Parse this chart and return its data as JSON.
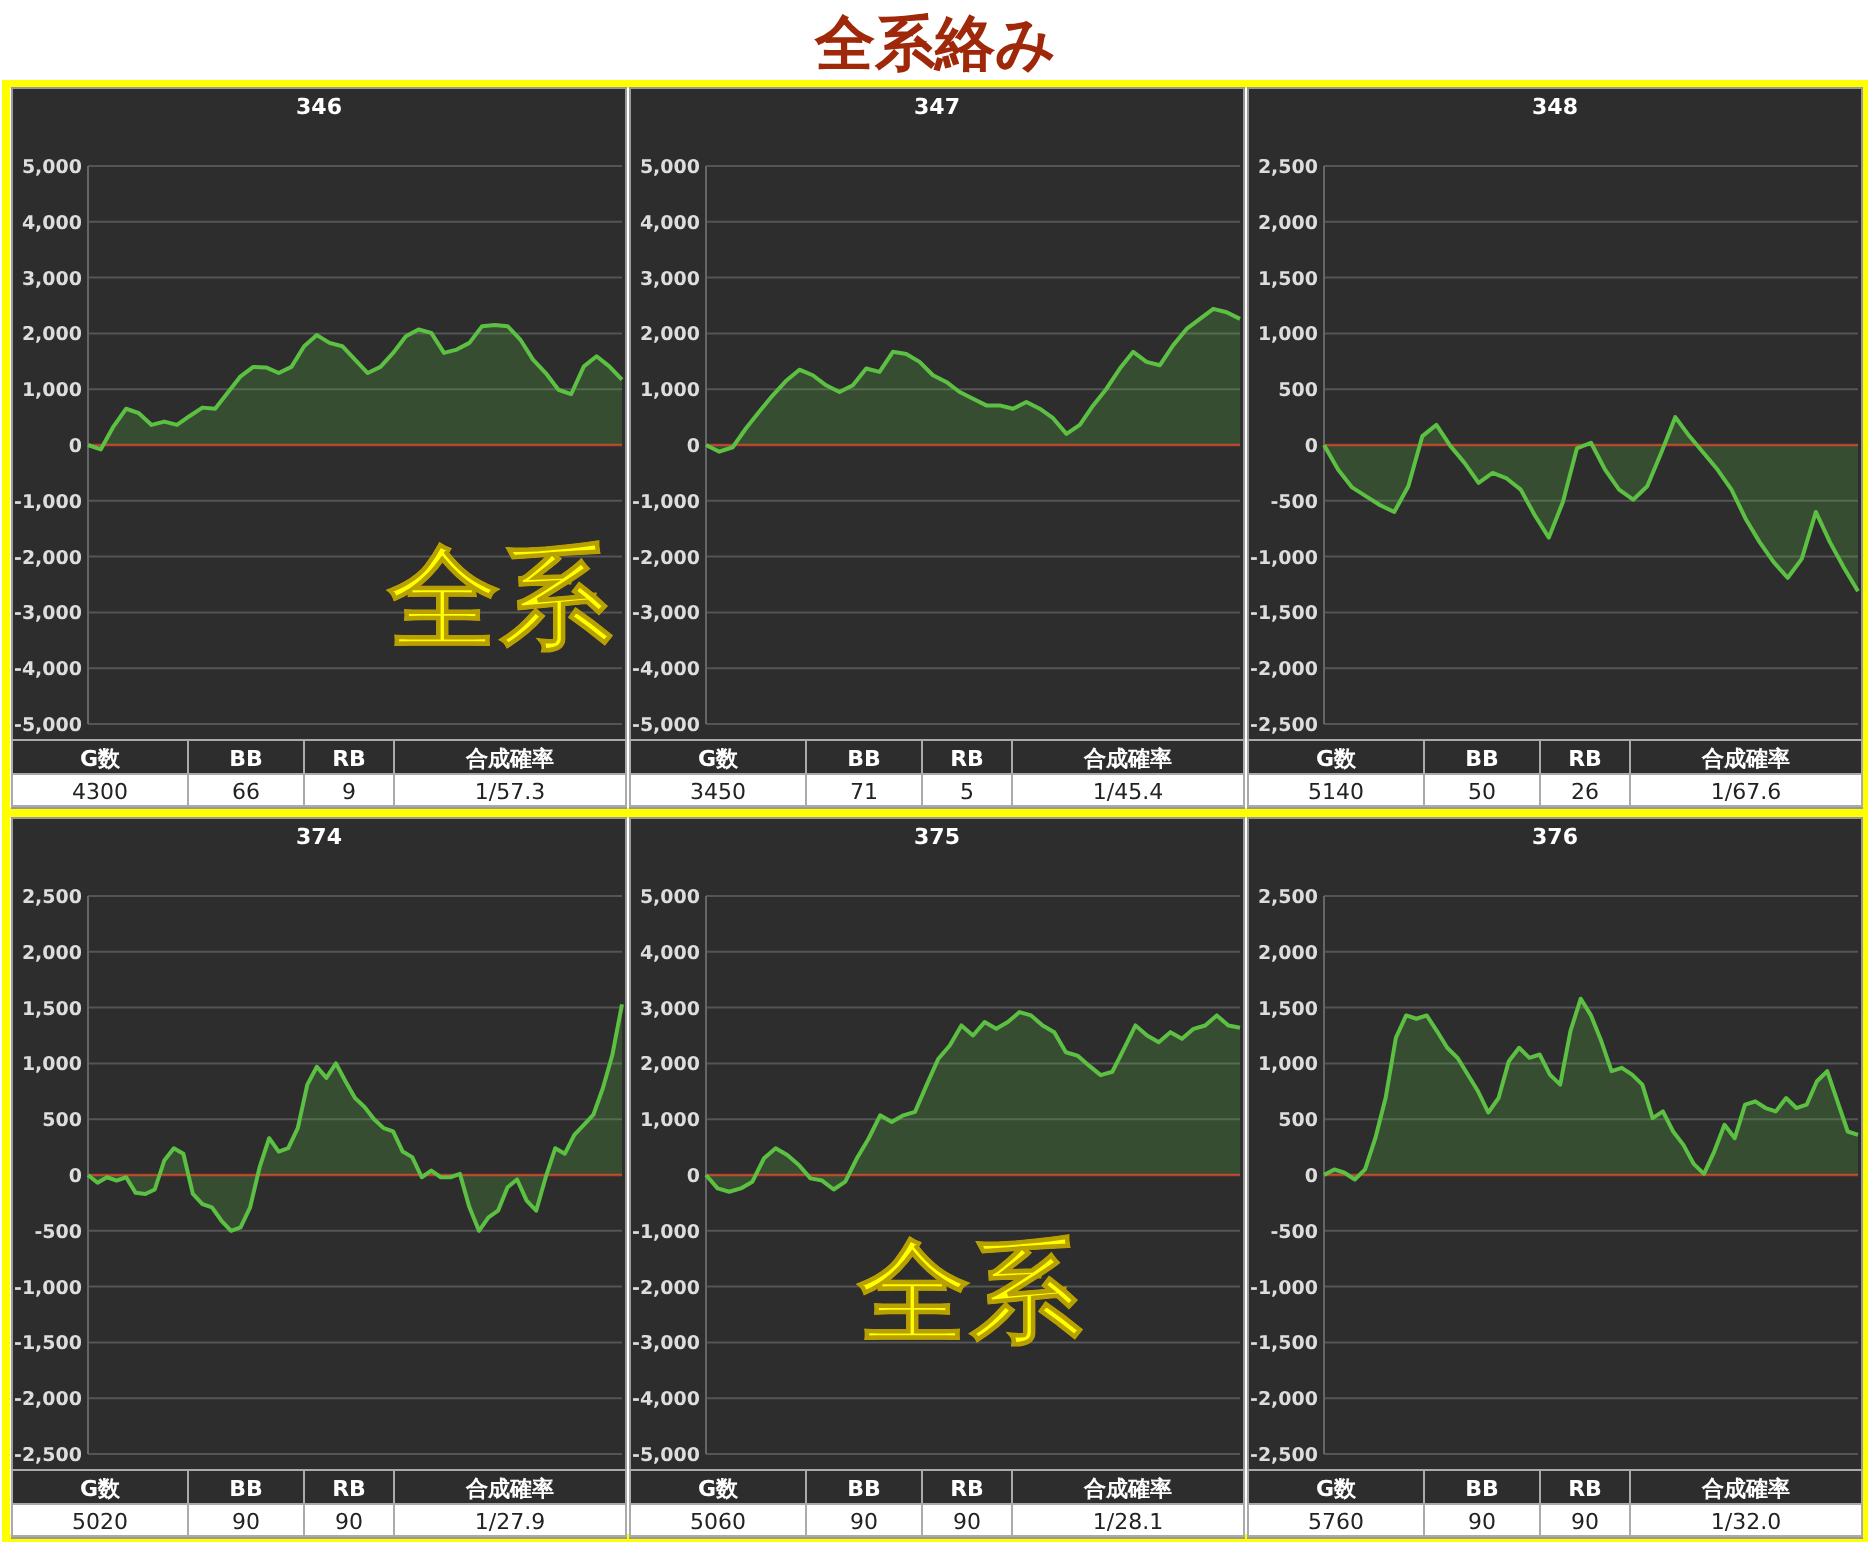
{
  "chart_data": [
    {
      "type": "other",
      "title": "全系絡み",
      "annotations": [
        "全系",
        "全系"
      ]
    },
    {
      "type": "area",
      "title": "346",
      "color": "#5cc043",
      "grid": "y",
      "tick_labels": "y",
      "ylim": [
        -5000,
        5000
      ],
      "yticks": [
        {
          "value": 5000,
          "label": "5,000"
        },
        {
          "value": 4000,
          "label": "4,000"
        },
        {
          "value": 3000,
          "label": "3,000"
        },
        {
          "value": 2000,
          "label": "2,000"
        },
        {
          "value": 1000,
          "label": "1,000"
        },
        0,
        {
          "value": -1000,
          "label": "-1,000"
        },
        {
          "value": -2000,
          "label": "-2,000"
        },
        {
          "value": -3000,
          "label": "-3,000"
        },
        {
          "value": -4000,
          "label": "-4,000"
        },
        {
          "value": -5000,
          "label": "-5,000"
        }
      ],
      "ref_lines": [
        {
          "axis": "y",
          "value": 0,
          "color": "#c0392b"
        }
      ],
      "annotations": [
        "G数",
        "BB",
        "RB",
        "合成確率",
        "4300",
        "66",
        "9",
        "1/57.3"
      ],
      "categories": [
        null,
        null,
        null,
        null,
        null,
        null,
        null,
        null,
        null,
        null,
        null,
        null,
        null,
        null,
        null,
        null,
        null,
        null,
        null,
        null,
        null,
        null,
        null,
        null,
        null,
        null,
        null,
        null,
        null,
        null,
        null,
        null,
        null,
        null,
        null,
        null,
        null,
        null,
        null,
        null,
        null,
        null,
        null
      ],
      "values": [
        0,
        -80,
        330,
        650,
        570,
        360,
        420,
        360,
        520,
        670,
        650,
        940,
        1230,
        1400,
        1390,
        1290,
        1400,
        1770,
        1970,
        1830,
        1770,
        1530,
        1290,
        1400,
        1650,
        1950,
        2070,
        2010,
        1650,
        1710,
        1830,
        2130,
        2150,
        2130,
        1890,
        1530,
        1290,
        990,
        910,
        1410,
        1590,
        1410,
        1170
      ]
    },
    {
      "type": "area",
      "title": "347",
      "color": "#5cc043",
      "grid": "y",
      "tick_labels": "y",
      "ylim": [
        -5000,
        5000
      ],
      "yticks": [
        {
          "value": 5000,
          "label": "5,000"
        },
        {
          "value": 4000,
          "label": "4,000"
        },
        {
          "value": 3000,
          "label": "3,000"
        },
        {
          "value": 2000,
          "label": "2,000"
        },
        {
          "value": 1000,
          "label": "1,000"
        },
        0,
        {
          "value": -1000,
          "label": "-1,000"
        },
        {
          "value": -2000,
          "label": "-2,000"
        },
        {
          "value": -3000,
          "label": "-3,000"
        },
        {
          "value": -4000,
          "label": "-4,000"
        },
        {
          "value": -5000,
          "label": "-5,000"
        }
      ],
      "ref_lines": [
        {
          "axis": "y",
          "value": 0,
          "color": "#c0392b"
        }
      ],
      "annotations": [
        "G数",
        "BB",
        "RB",
        "合成確率",
        "3450",
        "71",
        "5",
        "1/45.4"
      ],
      "categories": [
        null,
        null,
        null,
        null,
        null,
        null,
        null,
        null,
        null,
        null,
        null,
        null,
        null,
        null,
        null,
        null,
        null,
        null,
        null,
        null,
        null,
        null,
        null,
        null,
        null,
        null,
        null,
        null,
        null,
        null,
        null,
        null,
        null,
        null,
        null,
        null,
        null,
        null,
        null,
        null,
        null
      ],
      "values": [
        0,
        -120,
        -40,
        300,
        600,
        890,
        1150,
        1350,
        1250,
        1070,
        950,
        1070,
        1370,
        1310,
        1670,
        1630,
        1490,
        1250,
        1130,
        950,
        830,
        710,
        710,
        650,
        770,
        650,
        480,
        200,
        360,
        710,
        1010,
        1370,
        1670,
        1490,
        1430,
        1790,
        2080,
        2260,
        2440,
        2380,
        2260
      ]
    },
    {
      "type": "area",
      "title": "348",
      "color": "#5cc043",
      "grid": "y",
      "tick_labels": "y",
      "ylim": [
        -2500,
        2500
      ],
      "yticks": [
        {
          "value": 2500,
          "label": "2,500"
        },
        {
          "value": 2000,
          "label": "2,000"
        },
        {
          "value": 1500,
          "label": "1,500"
        },
        {
          "value": 1000,
          "label": "1,000"
        },
        500,
        0,
        -500,
        {
          "value": -1000,
          "label": "-1,000"
        },
        {
          "value": -1500,
          "label": "-1,500"
        },
        {
          "value": -2000,
          "label": "-2,000"
        },
        {
          "value": -2500,
          "label": "-2,500"
        }
      ],
      "ref_lines": [
        {
          "axis": "y",
          "value": 0,
          "color": "#c0392b"
        }
      ],
      "annotations": [
        "G数",
        "BB",
        "RB",
        "合成確率",
        "5140",
        "50",
        "26",
        "1/67.6"
      ],
      "categories": [
        null,
        null,
        null,
        null,
        null,
        null,
        null,
        null,
        null,
        null,
        null,
        null,
        null,
        null,
        null,
        null,
        null,
        null,
        null,
        null,
        null,
        null,
        null,
        null,
        null,
        null,
        null,
        null,
        null,
        null,
        null,
        null,
        null,
        null,
        null,
        null,
        null,
        null,
        null
      ],
      "values": [
        0,
        -220,
        -380,
        -460,
        -540,
        -600,
        -370,
        80,
        180,
        -10,
        -160,
        -340,
        -250,
        -300,
        -400,
        -630,
        -830,
        -510,
        -30,
        20,
        -220,
        -400,
        -490,
        -370,
        -70,
        250,
        80,
        -70,
        -220,
        -400,
        -660,
        -870,
        -1050,
        -1190,
        -1020,
        -600,
        -870,
        -1100,
        -1310
      ]
    },
    {
      "type": "area",
      "title": "374",
      "color": "#5cc043",
      "grid": "y",
      "tick_labels": "y",
      "ylim": [
        -2500,
        2500
      ],
      "yticks": [
        {
          "value": 2500,
          "label": "2,500"
        },
        {
          "value": 2000,
          "label": "2,000"
        },
        {
          "value": 1500,
          "label": "1,500"
        },
        {
          "value": 1000,
          "label": "1,000"
        },
        500,
        0,
        -500,
        {
          "value": -1000,
          "label": "-1,000"
        },
        {
          "value": -1500,
          "label": "-1,500"
        },
        {
          "value": -2000,
          "label": "-2,000"
        },
        {
          "value": -2500,
          "label": "-2,500"
        }
      ],
      "ref_lines": [
        {
          "axis": "y",
          "value": 0,
          "color": "#c0392b"
        }
      ],
      "annotations": [
        "G数",
        "BB",
        "RB",
        "合成確率",
        "5020",
        "90",
        "90",
        "1/27.9"
      ],
      "categories": [
        null,
        null,
        null,
        null,
        null,
        null,
        null,
        null,
        null,
        null,
        null,
        null,
        null,
        null,
        null,
        null,
        null,
        null,
        null,
        null,
        null,
        null,
        null,
        null,
        null,
        null,
        null,
        null,
        null,
        null,
        null,
        null,
        null,
        null,
        null,
        null,
        null,
        null,
        null,
        null,
        null,
        null,
        null,
        null,
        null,
        null,
        null,
        null,
        null,
        null,
        null,
        null,
        null,
        null,
        null,
        null,
        null
      ],
      "values": [
        0,
        -70,
        -20,
        -50,
        -20,
        -160,
        -170,
        -130,
        130,
        240,
        190,
        -170,
        -260,
        -290,
        -410,
        -500,
        -470,
        -290,
        70,
        330,
        210,
        240,
        420,
        810,
        970,
        870,
        1000,
        840,
        690,
        610,
        500,
        420,
        390,
        210,
        160,
        -20,
        40,
        -20,
        -20,
        10,
        -290,
        -500,
        -380,
        -320,
        -110,
        -40,
        -230,
        -320,
        -20,
        240,
        190,
        360,
        450,
        540,
        780,
        1080,
        1530
      ]
    },
    {
      "type": "area",
      "title": "375",
      "color": "#5cc043",
      "grid": "y",
      "tick_labels": "y",
      "ylim": [
        -5000,
        5000
      ],
      "yticks": [
        {
          "value": 5000,
          "label": "5,000"
        },
        {
          "value": 4000,
          "label": "4,000"
        },
        {
          "value": 3000,
          "label": "3,000"
        },
        {
          "value": 2000,
          "label": "2,000"
        },
        {
          "value": 1000,
          "label": "1,000"
        },
        0,
        {
          "value": -1000,
          "label": "-1,000"
        },
        {
          "value": -2000,
          "label": "-2,000"
        },
        {
          "value": -3000,
          "label": "-3,000"
        },
        {
          "value": -4000,
          "label": "-4,000"
        },
        {
          "value": -5000,
          "label": "-5,000"
        }
      ],
      "ref_lines": [
        {
          "axis": "y",
          "value": 0,
          "color": "#c0392b"
        }
      ],
      "annotations": [
        "G数",
        "BB",
        "RB",
        "合成確率",
        "5060",
        "90",
        "90",
        "1/28.1"
      ],
      "categories": [
        null,
        null,
        null,
        null,
        null,
        null,
        null,
        null,
        null,
        null,
        null,
        null,
        null,
        null,
        null,
        null,
        null,
        null,
        null,
        null,
        null,
        null,
        null,
        null,
        null,
        null,
        null,
        null,
        null,
        null,
        null,
        null,
        null,
        null,
        null,
        null,
        null,
        null,
        null,
        null,
        null,
        null,
        null,
        null,
        null,
        null,
        null
      ],
      "values": [
        0,
        -240,
        -300,
        -240,
        -120,
        300,
        480,
        360,
        180,
        -60,
        -100,
        -260,
        -120,
        300,
        650,
        1070,
        950,
        1070,
        1130,
        1610,
        2080,
        2320,
        2680,
        2500,
        2740,
        2620,
        2740,
        2920,
        2860,
        2680,
        2560,
        2200,
        2140,
        1960,
        1790,
        1850,
        2260,
        2680,
        2500,
        2380,
        2560,
        2440,
        2620,
        2680,
        2860,
        2680,
        2640
      ]
    },
    {
      "type": "area",
      "title": "376",
      "color": "#5cc043",
      "grid": "y",
      "tick_labels": "y",
      "ylim": [
        -2500,
        2500
      ],
      "yticks": [
        {
          "value": 2500,
          "label": "2,500"
        },
        {
          "value": 2000,
          "label": "2,000"
        },
        {
          "value": 1500,
          "label": "1,500"
        },
        {
          "value": 1000,
          "label": "1,000"
        },
        500,
        0,
        -500,
        {
          "value": -1000,
          "label": "-1,000"
        },
        {
          "value": -1500,
          "label": "-1,500"
        },
        {
          "value": -2000,
          "label": "-2,000"
        },
        {
          "value": -2500,
          "label": "-2,500"
        }
      ],
      "ref_lines": [
        {
          "axis": "y",
          "value": 0,
          "color": "#c0392b"
        }
      ],
      "annotations": [
        "G数",
        "BB",
        "RB",
        "合成確率",
        "5760",
        "90",
        "90",
        "1/32.0"
      ],
      "categories": [
        null,
        null,
        null,
        null,
        null,
        null,
        null,
        null,
        null,
        null,
        null,
        null,
        null,
        null,
        null,
        null,
        null,
        null,
        null,
        null,
        null,
        null,
        null,
        null,
        null,
        null,
        null,
        null,
        null,
        null,
        null,
        null,
        null,
        null,
        null,
        null,
        null,
        null,
        null,
        null,
        null,
        null,
        null,
        null,
        null,
        null,
        null,
        null,
        null,
        null,
        null,
        null,
        null
      ],
      "values": [
        0,
        50,
        20,
        -40,
        50,
        330,
        690,
        1230,
        1430,
        1400,
        1430,
        1290,
        1140,
        1050,
        900,
        750,
        560,
        690,
        1020,
        1140,
        1050,
        1080,
        900,
        810,
        1290,
        1580,
        1430,
        1200,
        930,
        960,
        900,
        810,
        510,
        570,
        390,
        270,
        100,
        10,
        210,
        450,
        330,
        630,
        660,
        600,
        570,
        690,
        600,
        630,
        840,
        930,
        660,
        390,
        360
      ]
    }
  ]
}
